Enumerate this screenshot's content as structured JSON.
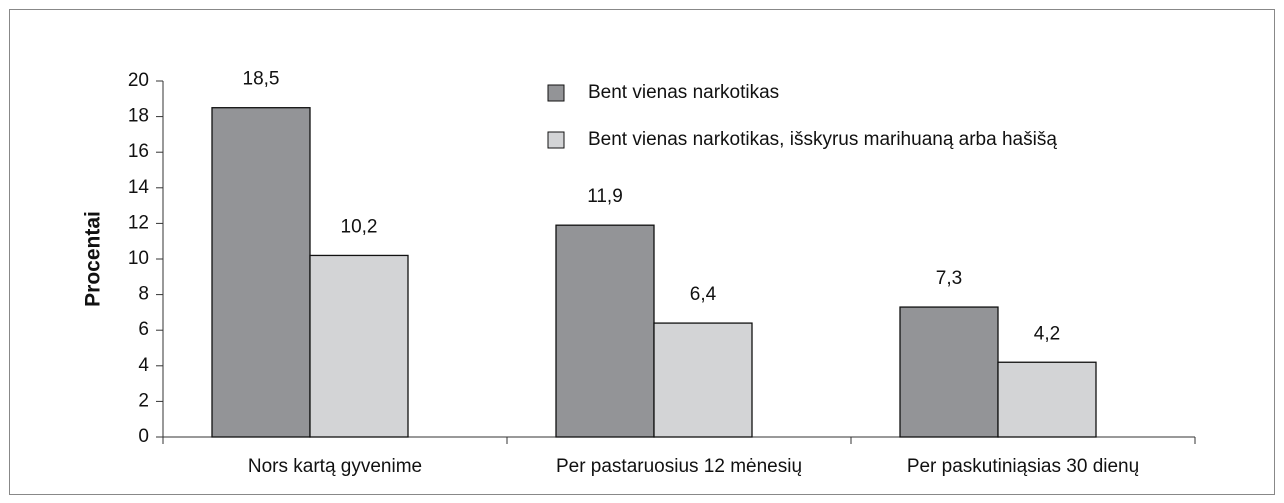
{
  "chart_data": {
    "type": "bar",
    "ylabel": "Procentai",
    "categories": [
      "Nors kartą gyvenime",
      "Per pastaruosius 12 mėnesių",
      "Per paskutiniąsias 30 dienų"
    ],
    "series": [
      {
        "name": "Bent vienas narkotikas",
        "color": "#939497",
        "values": [
          18.5,
          11.9,
          7.3
        ],
        "value_labels": [
          "18,5",
          "11,9",
          "7,3"
        ]
      },
      {
        "name": "Bent vienas narkotikas, išskyrus marihuaną arba hašišą",
        "color": "#d3d4d6",
        "values": [
          10.2,
          6.4,
          4.2
        ],
        "value_labels": [
          "10,2",
          "6,4",
          "4,2"
        ]
      }
    ],
    "ylim": [
      0,
      20
    ],
    "yticks": [
      0,
      2,
      4,
      6,
      8,
      10,
      12,
      14,
      16,
      18,
      20
    ]
  }
}
